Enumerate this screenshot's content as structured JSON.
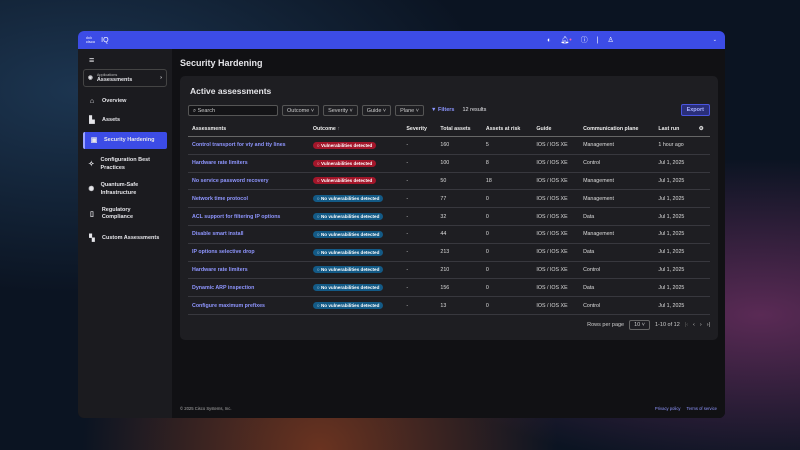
{
  "app": {
    "logo": "cisco",
    "title": "IQ"
  },
  "topbar": {
    "icons": [
      "status-icon",
      "bell-icon",
      "help-icon",
      "user-icon",
      "chevron-down-icon"
    ]
  },
  "sidebar": {
    "app_selector": {
      "caption": "Applications",
      "label": "Assessments"
    },
    "items": [
      {
        "label": "Overview",
        "icon": "home-icon"
      },
      {
        "label": "Assets",
        "icon": "chart-icon"
      },
      {
        "label": "Security Hardening",
        "icon": "shield-icon",
        "active": true
      },
      {
        "label": "Configuration Best Practices",
        "icon": "tools-icon"
      },
      {
        "label": "Quantum-Safe Infrastructure",
        "icon": "gear-icon"
      },
      {
        "label": "Regulatory Compliance",
        "icon": "document-icon"
      },
      {
        "label": "Custom Assessments",
        "icon": "blocks-icon"
      }
    ]
  },
  "page": {
    "title": "Security Hardening"
  },
  "card": {
    "title": "Active assessments",
    "search_placeholder": "Search",
    "filters": [
      "Outcome",
      "Severity",
      "Guide",
      "Plane"
    ],
    "filters_label": "Filters",
    "results": "12 results",
    "export": "Export"
  },
  "table": {
    "columns": [
      "Assessments",
      "Outcome",
      "Severity",
      "Total assets",
      "Assets at risk",
      "Guide",
      "Communication plane",
      "Last run"
    ],
    "sort_indicator": "↑",
    "rows": [
      [
        "Control transport for vty and tty lines",
        "Vulnerabilities detected",
        "-",
        "160",
        "5",
        "IOS / IOS XE",
        "Management",
        "1 hour ago"
      ],
      [
        "Hardware rate limiters",
        "Vulnerabilities detected",
        "-",
        "100",
        "8",
        "IOS / IOS XE",
        "Control",
        "Jul 1, 2025"
      ],
      [
        "No service password recovery",
        "Vulnerabilities detected",
        "-",
        "50",
        "18",
        "IOS / IOS XE",
        "Management",
        "Jul 1, 2025"
      ],
      [
        "Network time protocol",
        "No vulnerabilities detected",
        "-",
        "77",
        "0",
        "IOS / IOS XE",
        "Management",
        "Jul 1, 2025"
      ],
      [
        "ACL support for filtering IP options",
        "No vulnerabilities detected",
        "-",
        "32",
        "0",
        "IOS / IOS XE",
        "Data",
        "Jul 1, 2025"
      ],
      [
        "Disable smart install",
        "No vulnerabilities detected",
        "-",
        "44",
        "0",
        "IOS / IOS XE",
        "Management",
        "Jul 1, 2025"
      ],
      [
        "IP options selective drop",
        "No vulnerabilities detected",
        "-",
        "213",
        "0",
        "IOS / IOS XE",
        "Data",
        "Jul 1, 2025"
      ],
      [
        "Hardware rate limiters",
        "No vulnerabilities detected",
        "-",
        "210",
        "0",
        "IOS / IOS XE",
        "Control",
        "Jul 1, 2025"
      ],
      [
        "Dynamic ARP inspection",
        "No vulnerabilities detected",
        "-",
        "156",
        "0",
        "IOS / IOS XE",
        "Data",
        "Jul 1, 2025"
      ],
      [
        "Configure maximum prefixes",
        "No vulnerabilities detected",
        "-",
        "13",
        "0",
        "IOS / IOS XE",
        "Control",
        "Jul 1, 2025"
      ]
    ]
  },
  "pagination": {
    "rows_per_page_label": "Rows per page",
    "rows_per_page": "10",
    "range": "1-10 of 12"
  },
  "footer": {
    "copyright": "© 2025 Cisco Systems, Inc.",
    "privacy": "Privacy policy",
    "terms": "Terms of service"
  },
  "colors": {
    "accent": "#3c4ce6",
    "danger": "#a3162a",
    "info": "#135a86",
    "link": "#8f96ff"
  }
}
